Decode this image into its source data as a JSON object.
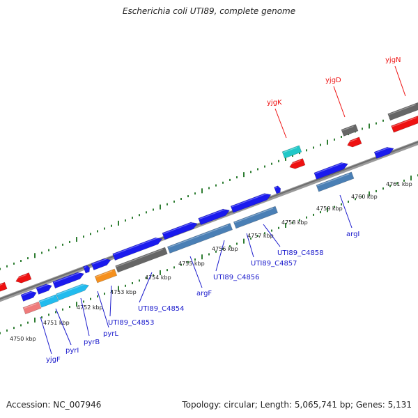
{
  "title": "Escherichia coli UTI89, complete genome",
  "footer": {
    "accession": "Accession: NC_007946",
    "summary": "Topology: circular; Length: 5,065,741 bp; Genes: 5,131"
  },
  "colors": {
    "backbone": "#777777",
    "tick": "#2e7d32",
    "blue": "#1a1aee",
    "steel": "#4a7fb5",
    "gray": "#666666",
    "cyan": "#22bbee",
    "teal": "#20c8c8",
    "orange": "#f5901e",
    "red": "#ee1111",
    "pink": "#ef7b7b",
    "label_blue": "#1a1acc",
    "label_red": "#ee1111"
  },
  "kbp_labels": [
    "4750 kbp",
    "4751 kbp",
    "4752 kbp",
    "4753 kbp",
    "4754 kbp",
    "4755 kbp",
    "4756 kbp",
    "4757 kbp",
    "4758 kbp",
    "4759 kbp",
    "4760 kbp",
    "4761 kbp"
  ],
  "genes_bottom": [
    "yjgF",
    "pyrI",
    "pyrB",
    "pyrL",
    "UTI89_C4853",
    "UTI89_C4854",
    "argF",
    "UTI89_C4856",
    "UTI89_C4857",
    "UTI89_C4858",
    "argI"
  ],
  "genes_top": [
    "yjgK",
    "yjgD",
    "yjgN"
  ]
}
